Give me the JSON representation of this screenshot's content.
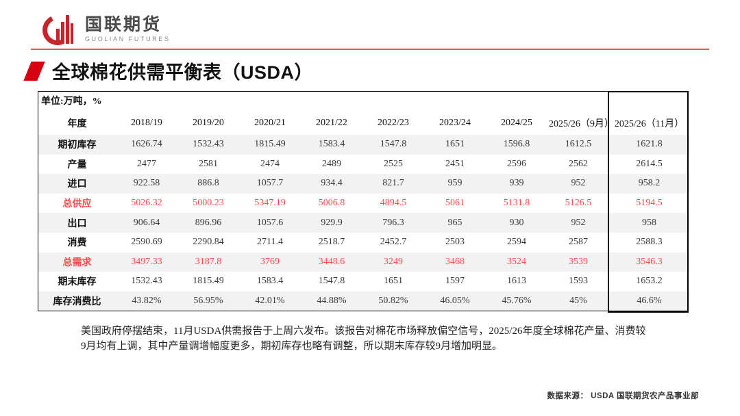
{
  "brand": {
    "name_cn": "国联期货",
    "name_en": "GUOLIAN FUTURES"
  },
  "title": "全球棉花供需平衡表（USDA）",
  "table": {
    "unit_label": "单位:万吨，%",
    "header": [
      "年度",
      "2018/19",
      "2019/20",
      "2020/21",
      "2021/22",
      "2022/23",
      "2023/24",
      "2024/25",
      "2025/26（9月）",
      "2025/26（11月）"
    ],
    "rows": [
      {
        "label": "期初库存",
        "values": [
          "1626.74",
          "1532.43",
          "1815.49",
          "1583.4",
          "1547.8",
          "1651",
          "1596.8",
          "1612.5",
          "1621.8"
        ],
        "highlight": false
      },
      {
        "label": "产量",
        "values": [
          "2477",
          "2581",
          "2474",
          "2489",
          "2525",
          "2451",
          "2596",
          "2562",
          "2614.5"
        ],
        "highlight": false
      },
      {
        "label": "进口",
        "values": [
          "922.58",
          "886.8",
          "1057.7",
          "934.4",
          "821.7",
          "959",
          "939",
          "952",
          "958.2"
        ],
        "highlight": false
      },
      {
        "label": "总供应",
        "values": [
          "5026.32",
          "5000.23",
          "5347.19",
          "5006.8",
          "4894.5",
          "5061",
          "5131.8",
          "5126.5",
          "5194.5"
        ],
        "highlight": true
      },
      {
        "label": "出口",
        "values": [
          "906.64",
          "896.96",
          "1057.6",
          "929.9",
          "796.3",
          "965",
          "930",
          "952",
          "958"
        ],
        "highlight": false
      },
      {
        "label": "消费",
        "values": [
          "2590.69",
          "2290.84",
          "2711.4",
          "2518.7",
          "2452.7",
          "2503",
          "2594",
          "2587",
          "2588.3"
        ],
        "highlight": false
      },
      {
        "label": "总需求",
        "values": [
          "3497.33",
          "3187.8",
          "3769",
          "3448.6",
          "3249",
          "3468",
          "3524",
          "3539",
          "3546.3"
        ],
        "highlight": true
      },
      {
        "label": "期末库存",
        "values": [
          "1532.43",
          "1815.49",
          "1583.4",
          "1547.8",
          "1651",
          "1597",
          "1613",
          "1593",
          "1653.2"
        ],
        "highlight": false
      },
      {
        "label": "库存消费比",
        "values": [
          "43.82%",
          "56.95%",
          "42.01%",
          "44.88%",
          "50.82%",
          "46.05%",
          "45.76%",
          "45%",
          "46.6%"
        ],
        "highlight": false
      }
    ]
  },
  "note": "美国政府停摆结束，11月USDA供需报告于上周六发布。该报告对棉花市场释放偏空信号，2025/26年度全球棉花产量、消费较9月均有上调，其中产量调增幅度更多，期初库存也略有调整，所以期末库存较9月增加明显。",
  "source": "数据来源： USDA 国联期货农产品事业部",
  "colors": {
    "accent_red": "#d7000f",
    "logo_red": "#c7252c",
    "value_red": "#fb4a4a",
    "row_alt_gray": "#f2f2f2"
  }
}
